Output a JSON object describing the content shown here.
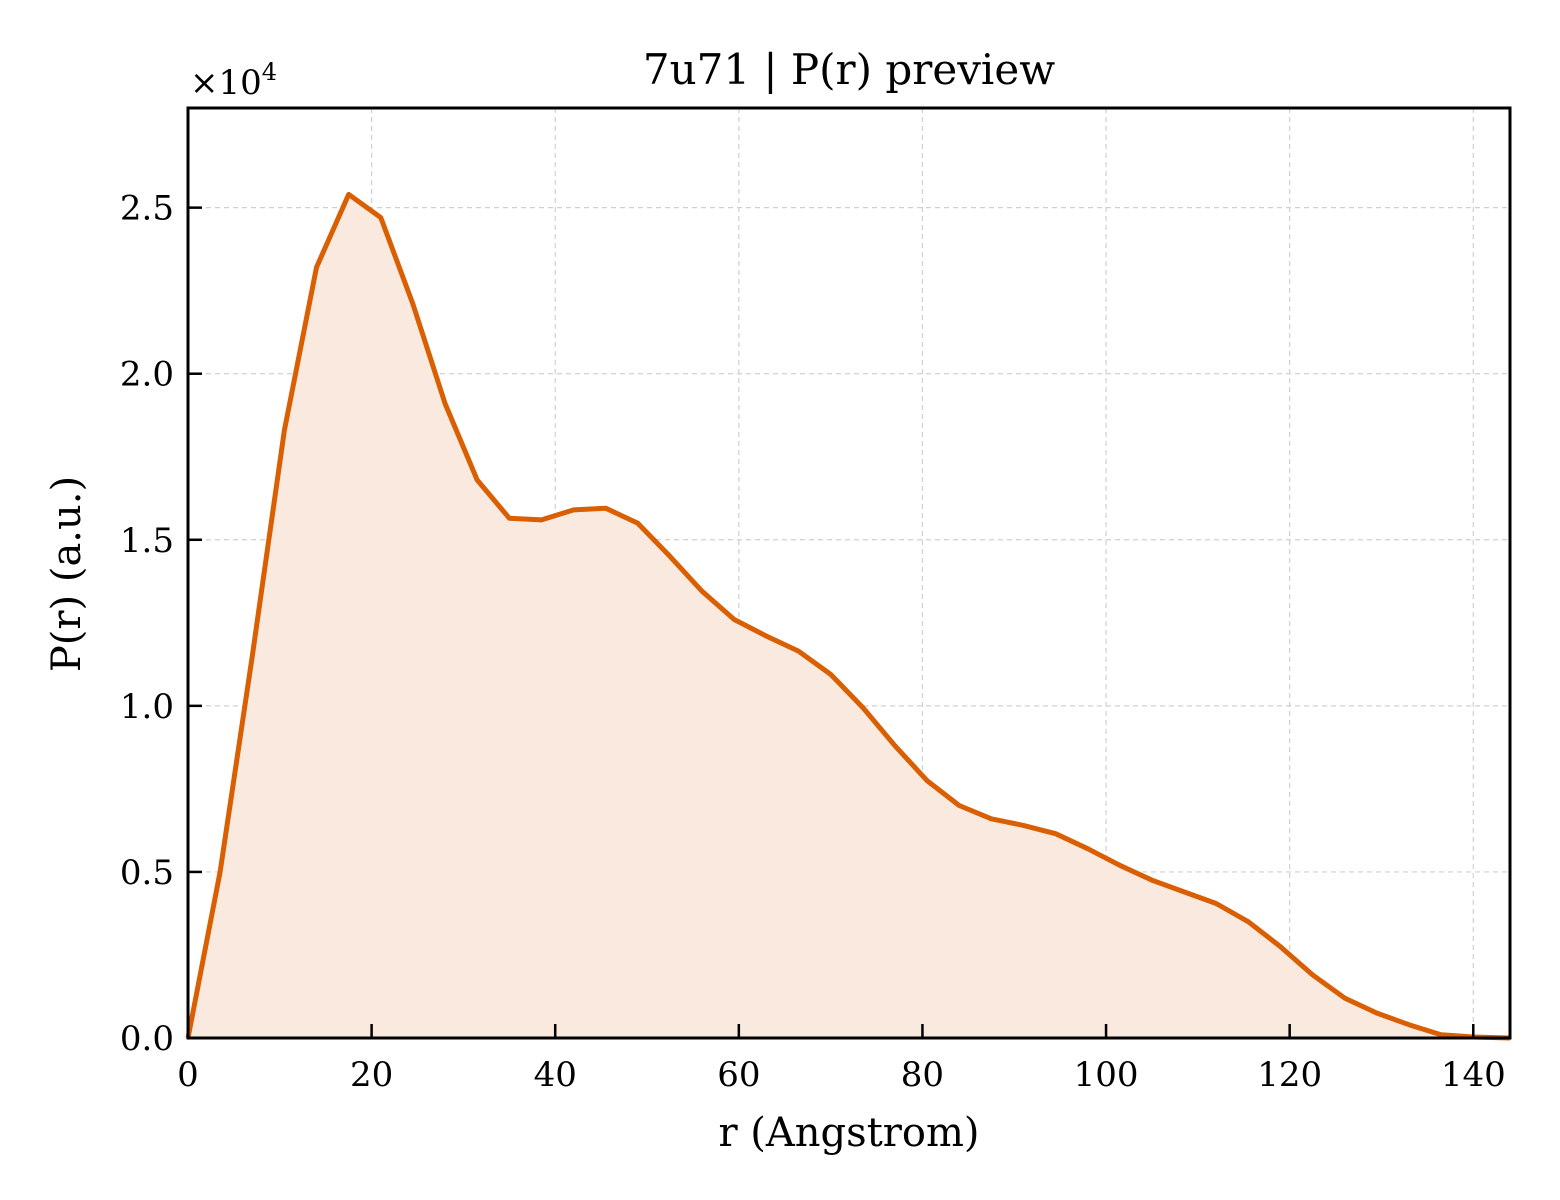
{
  "chart_data": {
    "type": "area",
    "title": "7u71 | P(r) preview",
    "xlabel": "r (Angstrom)",
    "ylabel": "P(r) (a.u.)",
    "y_multiplier": "×10",
    "y_multiplier_exp": "4",
    "xlim": [
      0,
      144
    ],
    "ylim": [
      0,
      2.8
    ],
    "xticks": [
      0,
      20,
      40,
      60,
      80,
      100,
      120,
      140
    ],
    "yticks": [
      0.0,
      0.5,
      1.0,
      1.5,
      2.0,
      2.5
    ],
    "xtick_labels": [
      "0",
      "20",
      "40",
      "60",
      "80",
      "100",
      "120",
      "140"
    ],
    "ytick_labels": [
      "0.0",
      "0.5",
      "1.0",
      "1.5",
      "2.0",
      "2.5"
    ],
    "grid": true,
    "colors": {
      "line": "#d95f02",
      "fill": "#fae9df"
    },
    "series": [
      {
        "x": [
          0,
          3.5,
          7.0,
          10.5,
          14.0,
          17.5,
          21.0,
          24.5,
          28.0,
          31.5,
          35.0,
          38.5,
          42.0,
          45.5,
          49.0,
          52.5,
          56.0,
          59.5,
          63.0,
          66.5,
          70.0,
          73.5,
          77.0,
          80.5,
          84.0,
          87.5,
          91.0,
          94.5,
          98.0,
          101.5,
          105.0,
          108.5,
          112.0,
          115.5,
          119.0,
          122.5,
          126.0,
          129.5,
          133.0,
          136.5,
          140.0,
          144.0
        ],
        "y": [
          0.0,
          0.5,
          1.15,
          1.83,
          2.32,
          2.54,
          2.47,
          2.21,
          1.91,
          1.68,
          1.565,
          1.56,
          1.59,
          1.595,
          1.55,
          1.45,
          1.345,
          1.26,
          1.21,
          1.165,
          1.095,
          0.995,
          0.88,
          0.775,
          0.7,
          0.66,
          0.64,
          0.615,
          0.57,
          0.52,
          0.475,
          0.44,
          0.405,
          0.35,
          0.275,
          0.19,
          0.12,
          0.075,
          0.04,
          0.01,
          0.003,
          0.0
        ]
      }
    ]
  }
}
